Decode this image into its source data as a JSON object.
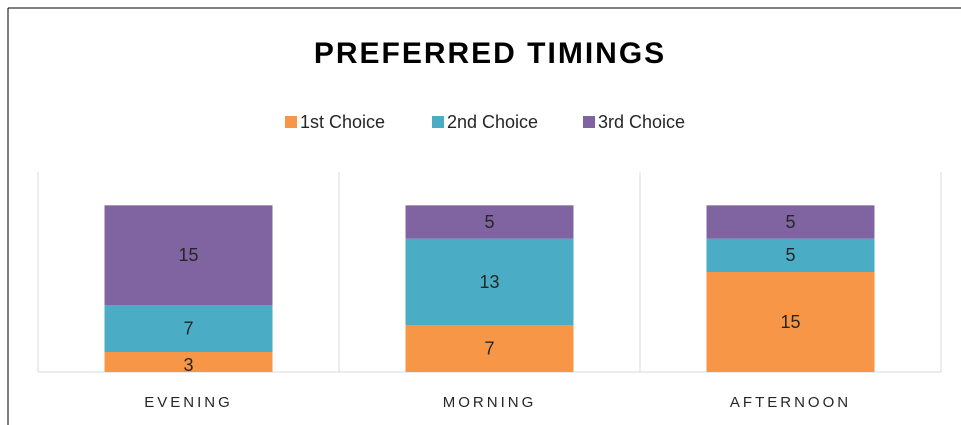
{
  "chart_data": {
    "type": "stacked_bar",
    "title": "PREFERRED TIMINGS",
    "categories": [
      "EVENING",
      "MORNING",
      "AFTERNOON"
    ],
    "series": [
      {
        "name": "1st Choice",
        "color": "#f79646",
        "values": [
          3,
          7,
          15
        ]
      },
      {
        "name": "2nd Choice",
        "color": "#4bacc6",
        "values": [
          7,
          13,
          5
        ]
      },
      {
        "name": "3rd Choice",
        "color": "#8064a2",
        "values": [
          15,
          5,
          5
        ]
      }
    ],
    "ylim": [
      0,
      30
    ],
    "legend": "top"
  }
}
